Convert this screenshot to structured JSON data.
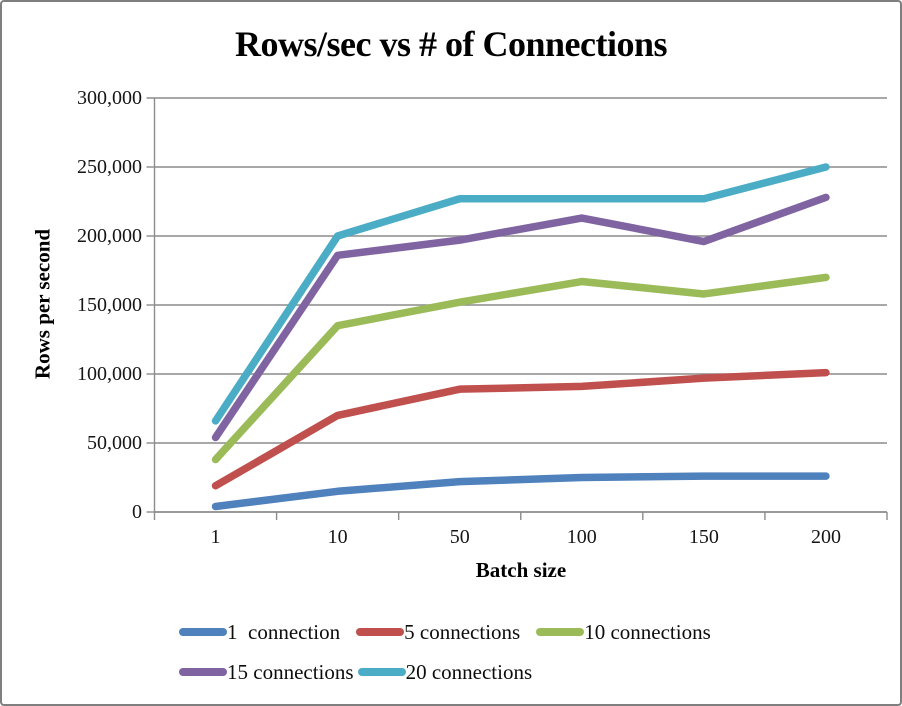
{
  "chart_data": {
    "type": "line",
    "title": "Rows/sec vs # of Connections",
    "xlabel": "Batch size",
    "ylabel": "Rows per second",
    "categories": [
      "1",
      "10",
      "50",
      "100",
      "150",
      "200"
    ],
    "x": [
      1,
      10,
      50,
      100,
      150,
      200
    ],
    "ylim": [
      0,
      300000
    ],
    "y_ticks": [
      0,
      50000,
      100000,
      150000,
      200000,
      250000,
      300000
    ],
    "grid": true,
    "legend_position": "bottom",
    "grid_color": "#8C8C8C",
    "axis_color": "#8C8C8C",
    "text_color": "#161616",
    "series": [
      {
        "name": "1  connection",
        "color": "#4F81BD",
        "values": [
          4000,
          15000,
          22000,
          25000,
          26000,
          26000
        ]
      },
      {
        "name": "5 connections",
        "color": "#C0504D",
        "values": [
          19000,
          70000,
          89000,
          91000,
          97000,
          101000
        ]
      },
      {
        "name": "10 connections",
        "color": "#9BBB59",
        "values": [
          38000,
          135000,
          152000,
          167000,
          158000,
          170000
        ]
      },
      {
        "name": "15 connections",
        "color": "#8064A2",
        "values": [
          54000,
          186000,
          197000,
          213000,
          196000,
          228000
        ]
      },
      {
        "name": "20 connections",
        "color": "#4BACC6",
        "values": [
          66000,
          200000,
          227000,
          227000,
          227000,
          250000
        ]
      }
    ]
  },
  "frame": {
    "background": "#FFFFFF",
    "border_color": "#7F7F7F"
  }
}
